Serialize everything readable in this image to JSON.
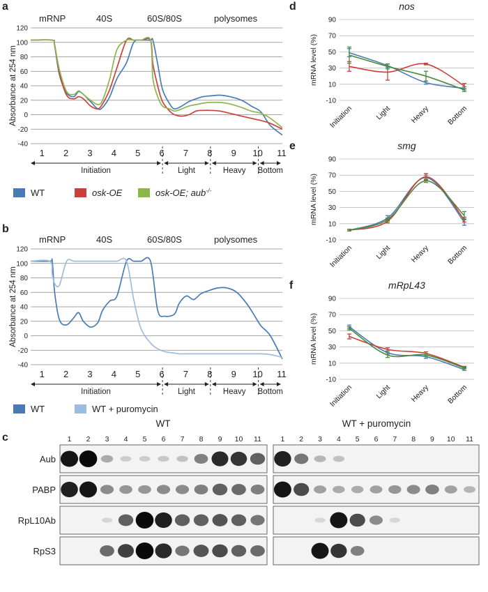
{
  "colors": {
    "wt": "#4a7ab5",
    "osk": "#c9403a",
    "aub": "#8db64a",
    "puro": "#9bbde0",
    "grid": "#888888"
  },
  "panels": {
    "a": "a",
    "b": "b",
    "c": "c",
    "d": "d",
    "e": "e",
    "f": "f"
  },
  "profile_header": [
    "mRNP",
    "40S",
    "60S/80S",
    "polysomes"
  ],
  "profile_fraction_numbers": [
    "1",
    "2",
    "3",
    "4",
    "5",
    "6",
    "7",
    "8",
    "9",
    "10",
    "11"
  ],
  "profile_groups": [
    "Initiation",
    "Light",
    "Heavy",
    "Bottom"
  ],
  "legend_a": [
    {
      "label": "WT",
      "color": "#4a7ab5"
    },
    {
      "label": "osk-OE",
      "color": "#c9403a"
    },
    {
      "label": "osk-OE; aub",
      "sup": "-/-",
      "color": "#8db64a"
    }
  ],
  "legend_b": [
    {
      "label": "WT",
      "color": "#4a7ab5"
    },
    {
      "label": "WT + puromycin",
      "color": "#9bbde0"
    }
  ],
  "chart_data": [
    {
      "id": "a",
      "type": "line",
      "ylabel": "Absorbance at 254 nm",
      "ylim": [
        -40,
        120
      ],
      "yticks": [
        -40,
        -20,
        0,
        20,
        40,
        60,
        80,
        100,
        120
      ],
      "x": [
        1,
        1.9,
        2,
        2.2,
        2.5,
        2.8,
        3,
        3.2,
        3.5,
        3.8,
        4,
        4.3,
        4.6,
        5,
        5.3,
        5.6,
        6,
        6.1,
        6.3,
        6.5,
        6.8,
        7,
        7.3,
        7.6,
        7.9,
        8.2,
        8.5,
        8.9,
        9.3,
        9.8,
        10.2,
        10.6,
        11,
        11.5
      ],
      "series": [
        {
          "name": "WT",
          "color": "#4a7ab5",
          "values": [
            103,
            103,
            95,
            55,
            30,
            25,
            32,
            28,
            18,
            8,
            10,
            25,
            50,
            72,
            100,
            103,
            103,
            103,
            70,
            35,
            15,
            8,
            12,
            18,
            22,
            25,
            26,
            27,
            25,
            20,
            12,
            4,
            -15,
            -28
          ]
        },
        {
          "name": "osk-OE",
          "color": "#c9403a",
          "values": [
            103,
            103,
            97,
            58,
            27,
            22,
            25,
            22,
            12,
            8,
            15,
            35,
            65,
            103,
            103,
            103,
            103,
            70,
            40,
            18,
            5,
            0,
            -2,
            0,
            5,
            6,
            6,
            5,
            2,
            -2,
            -5,
            -8,
            -12,
            -20
          ]
        },
        {
          "name": "osk-OE; aub-/-",
          "color": "#8db64a",
          "values": [
            103,
            103,
            96,
            62,
            32,
            28,
            33,
            28,
            20,
            14,
            20,
            50,
            90,
            103,
            103,
            103,
            103,
            50,
            25,
            12,
            8,
            5,
            8,
            12,
            14,
            16,
            17,
            17,
            15,
            10,
            5,
            2,
            -5,
            -18
          ]
        }
      ]
    },
    {
      "id": "b",
      "type": "line",
      "ylabel": "Absorbance at 254 nm",
      "ylim": [
        -40,
        120
      ],
      "yticks": [
        -40,
        -20,
        0,
        20,
        40,
        60,
        80,
        100,
        120
      ],
      "x": [
        1,
        1.8,
        1.9,
        2,
        2.2,
        2.5,
        2.8,
        3,
        3.2,
        3.5,
        3.8,
        4,
        4.3,
        4.6,
        5,
        5.3,
        5.6,
        6,
        6.3,
        6.6,
        7,
        7.2,
        7.5,
        7.8,
        8.1,
        8.4,
        8.8,
        9.2,
        9.6,
        10,
        10.3,
        10.6,
        11,
        11.5
      ],
      "series": [
        {
          "name": "WT",
          "color": "#4a7ab5",
          "values": [
            103,
            103,
            103,
            60,
            22,
            15,
            25,
            32,
            20,
            12,
            18,
            35,
            48,
            55,
            103,
            103,
            103,
            103,
            35,
            27,
            30,
            45,
            55,
            50,
            58,
            62,
            66,
            66,
            60,
            45,
            30,
            14,
            0,
            -32
          ]
        },
        {
          "name": "WT + puromycin",
          "color": "#9bbde0",
          "values": [
            103,
            103,
            85,
            72,
            70,
            103,
            103,
            103,
            103,
            103,
            103,
            103,
            103,
            103,
            103,
            50,
            10,
            -10,
            -18,
            -22,
            -24,
            -25,
            -25,
            -25,
            -25,
            -25,
            -25,
            -25,
            -25,
            -25,
            -25,
            -25,
            -26,
            -30
          ]
        }
      ]
    },
    {
      "id": "d",
      "type": "line",
      "title": "nos",
      "ylabel": "mRNA level (%)",
      "ylim": [
        -10,
        90
      ],
      "yticks": [
        -10,
        10,
        30,
        50,
        70,
        90
      ],
      "categories": [
        "Initiation",
        "Light",
        "Heavy",
        "Bottom"
      ],
      "series": [
        {
          "name": "WT",
          "color": "#4a7ab5",
          "values": [
            49,
            33,
            12,
            5
          ],
          "err": [
            5,
            2,
            2,
            2
          ]
        },
        {
          "name": "osk-OE",
          "color": "#c9403a",
          "values": [
            32,
            25,
            35,
            8
          ],
          "err": [
            6,
            10,
            1,
            3
          ]
        },
        {
          "name": "osk-OE; aub-/-",
          "color": "#4a8a3a",
          "values": [
            46,
            32,
            20,
            3
          ],
          "err": [
            10,
            3,
            6,
            2
          ]
        }
      ]
    },
    {
      "id": "e",
      "type": "line",
      "title": "smg",
      "ylabel": "mRNA level (%)",
      "ylim": [
        -10,
        90
      ],
      "yticks": [
        -10,
        10,
        30,
        50,
        70,
        90
      ],
      "categories": [
        "Initiation",
        "Light",
        "Heavy",
        "Bottom"
      ],
      "series": [
        {
          "name": "WT",
          "color": "#4a7ab5",
          "values": [
            2,
            17,
            67,
            12
          ],
          "err": [
            1,
            3,
            3,
            4
          ]
        },
        {
          "name": "osk-OE",
          "color": "#c9403a",
          "values": [
            2,
            13,
            68,
            15
          ],
          "err": [
            1,
            2,
            4,
            3
          ]
        },
        {
          "name": "osk-OE; aub-/-",
          "color": "#4a8a3a",
          "values": [
            2,
            15,
            63,
            20
          ],
          "err": [
            1,
            2,
            2,
            5
          ]
        }
      ]
    },
    {
      "id": "f",
      "type": "line",
      "title": "mRpL43",
      "ylabel": "mRNA level (%)",
      "ylim": [
        -10,
        90
      ],
      "yticks": [
        -10,
        10,
        30,
        50,
        70,
        90
      ],
      "categories": [
        "Initiation",
        "Light",
        "Heavy",
        "Bottom"
      ],
      "series": [
        {
          "name": "WT",
          "color": "#4a7ab5",
          "values": [
            55,
            23,
            18,
            2
          ],
          "err": [
            2,
            2,
            2,
            1
          ]
        },
        {
          "name": "osk-OE",
          "color": "#c9403a",
          "values": [
            43,
            27,
            22,
            5
          ],
          "err": [
            3,
            2,
            2,
            1
          ]
        },
        {
          "name": "osk-OE; aub-/-",
          "color": "#4a8a3a",
          "values": [
            53,
            20,
            20,
            4
          ],
          "err": [
            2,
            3,
            2,
            1
          ]
        }
      ]
    }
  ],
  "western": {
    "left_title": "WT",
    "right_title": "WT + puromycin",
    "lane_numbers": [
      "1",
      "2",
      "3",
      "4",
      "5",
      "6",
      "7",
      "8",
      "9",
      "10",
      "11"
    ],
    "rows": [
      {
        "label": "Aub",
        "left": [
          0.95,
          1.0,
          0.25,
          0.1,
          0.1,
          0.12,
          0.15,
          0.45,
          0.85,
          0.8,
          0.6
        ],
        "right": [
          0.9,
          0.5,
          0.2,
          0.15,
          0,
          0,
          0,
          0,
          0,
          0,
          0
        ]
      },
      {
        "label": "PABP",
        "left": [
          0.9,
          0.95,
          0.4,
          0.35,
          0.35,
          0.4,
          0.4,
          0.45,
          0.6,
          0.55,
          0.45
        ],
        "right": [
          0.95,
          0.7,
          0.3,
          0.25,
          0.25,
          0.3,
          0.35,
          0.4,
          0.45,
          0.3,
          0.2
        ]
      },
      {
        "label": "RpL10Ab",
        "left": [
          0,
          0,
          0.05,
          0.6,
          1.0,
          0.9,
          0.6,
          0.6,
          0.65,
          0.6,
          0.5
        ],
        "right": [
          0,
          0,
          0.05,
          0.95,
          0.7,
          0.4,
          0.05,
          0,
          0,
          0,
          0
        ]
      },
      {
        "label": "RpS3",
        "left": [
          0,
          0,
          0.55,
          0.75,
          1.0,
          0.85,
          0.5,
          0.65,
          0.7,
          0.6,
          0.55
        ],
        "right": [
          0,
          0,
          0.95,
          0.8,
          0.45,
          0,
          0,
          0,
          0,
          0,
          0
        ]
      }
    ]
  }
}
